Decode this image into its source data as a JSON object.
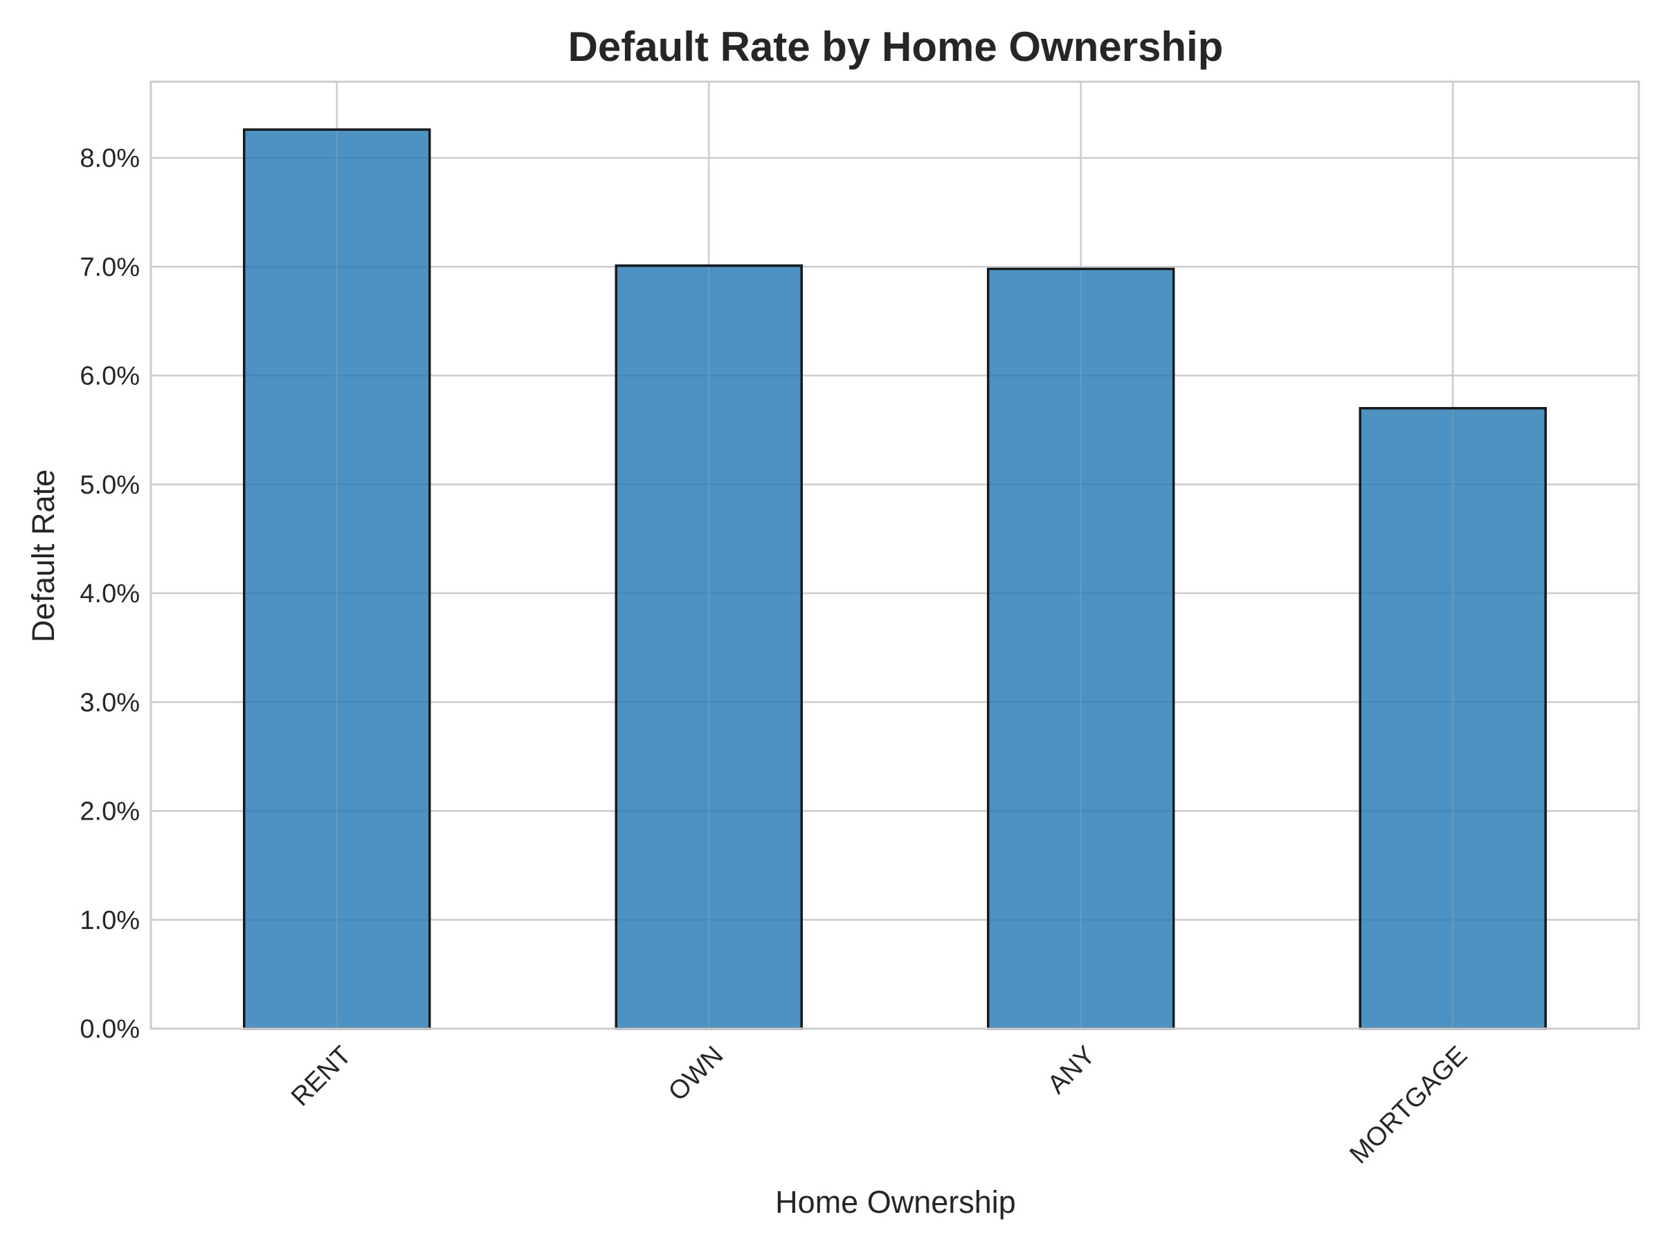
{
  "chart_data": {
    "type": "bar",
    "title": "Default Rate by Home Ownership",
    "xlabel": "Home Ownership",
    "ylabel": "Default Rate",
    "categories": [
      "RENT",
      "OWN",
      "ANY",
      "MORTGAGE"
    ],
    "values": [
      0.0826,
      0.0701,
      0.0698,
      0.057
    ],
    "ylim": [
      0,
      0.087
    ],
    "yticks": [
      0.0,
      0.01,
      0.02,
      0.03,
      0.04,
      0.05,
      0.06,
      0.07,
      0.08
    ],
    "ytick_labels": [
      "0.0%",
      "1.0%",
      "2.0%",
      "3.0%",
      "4.0%",
      "5.0%",
      "6.0%",
      "7.0%",
      "8.0%"
    ],
    "grid": true,
    "colors": {
      "bar_fill": "#1f77b4",
      "bar_edge": "#1a1a1a",
      "grid": "#cccccc",
      "text": "#262626"
    }
  }
}
